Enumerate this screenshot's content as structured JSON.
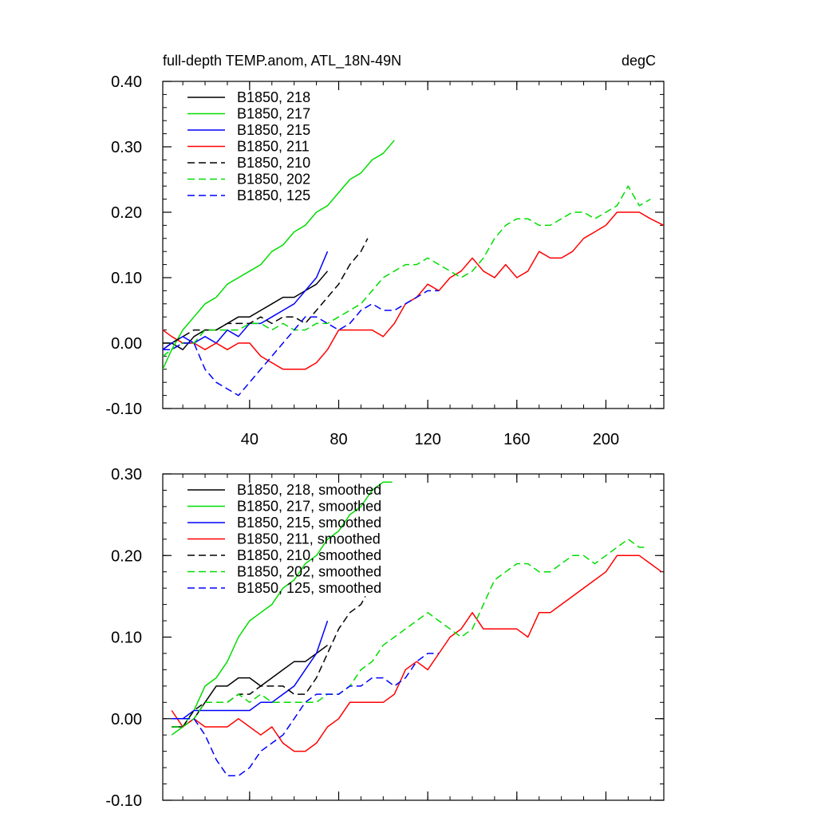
{
  "chart_data": [
    {
      "type": "line",
      "title": "full-depth TEMP.anom, ATL_18N-49N",
      "units_label": "degC",
      "xlim": [
        1,
        226
      ],
      "ylim": [
        -0.1,
        0.4
      ],
      "x_ticks": [
        40,
        80,
        120,
        160,
        200
      ],
      "x_tick_labels": [
        "40",
        "80",
        "120",
        "160",
        "200"
      ],
      "y_ticks": [
        -0.1,
        0.0,
        0.1,
        0.2,
        0.3,
        0.4
      ],
      "y_tick_labels": [
        "-0.10",
        "0.00",
        "0.10",
        "0.20",
        "0.30",
        "0.40"
      ],
      "legend_position": "top-left",
      "series": [
        {
          "name": "B1850, 218",
          "color": "#000000",
          "dash": "solid",
          "x": [
            1,
            5,
            10,
            15,
            20,
            25,
            30,
            35,
            40,
            45,
            50,
            55,
            60,
            65,
            70,
            75
          ],
          "y": [
            -0.01,
            0.0,
            -0.01,
            0.01,
            0.02,
            0.02,
            0.03,
            0.04,
            0.04,
            0.05,
            0.06,
            0.07,
            0.07,
            0.08,
            0.09,
            0.11
          ]
        },
        {
          "name": "B1850, 217",
          "color": "#00dd00",
          "dash": "solid",
          "x": [
            1,
            5,
            10,
            15,
            20,
            25,
            30,
            35,
            40,
            45,
            50,
            55,
            60,
            65,
            70,
            75,
            80,
            85,
            90,
            95,
            100,
            105
          ],
          "y": [
            -0.04,
            -0.01,
            0.02,
            0.04,
            0.06,
            0.07,
            0.09,
            0.1,
            0.11,
            0.12,
            0.14,
            0.15,
            0.17,
            0.18,
            0.2,
            0.21,
            0.23,
            0.25,
            0.26,
            0.28,
            0.29,
            0.31
          ]
        },
        {
          "name": "B1850, 215",
          "color": "#0000ff",
          "dash": "solid",
          "x": [
            1,
            5,
            10,
            15,
            20,
            25,
            30,
            35,
            40,
            45,
            50,
            55,
            60,
            65,
            70,
            75
          ],
          "y": [
            -0.01,
            0.0,
            0.01,
            0.0,
            0.01,
            0.0,
            0.02,
            0.01,
            0.03,
            0.03,
            0.04,
            0.05,
            0.06,
            0.08,
            0.1,
            0.14
          ]
        },
        {
          "name": "B1850, 211",
          "color": "#ff0000",
          "dash": "solid",
          "x": [
            1,
            5,
            10,
            15,
            20,
            25,
            30,
            35,
            40,
            45,
            50,
            55,
            60,
            65,
            70,
            75,
            80,
            85,
            90,
            95,
            100,
            105,
            110,
            115,
            120,
            125,
            130,
            135,
            140,
            145,
            150,
            155,
            160,
            165,
            170,
            175,
            180,
            185,
            190,
            195,
            200,
            205,
            210,
            215,
            220,
            226
          ],
          "y": [
            0.02,
            0.01,
            0.0,
            0.0,
            -0.01,
            -0.0,
            -0.01,
            0.0,
            0.0,
            -0.02,
            -0.03,
            -0.04,
            -0.04,
            -0.04,
            -0.03,
            -0.01,
            0.02,
            0.02,
            0.02,
            0.02,
            0.01,
            0.03,
            0.06,
            0.07,
            0.09,
            0.08,
            0.1,
            0.11,
            0.13,
            0.11,
            0.1,
            0.12,
            0.1,
            0.11,
            0.14,
            0.13,
            0.13,
            0.14,
            0.16,
            0.17,
            0.18,
            0.2,
            0.2,
            0.2,
            0.19,
            0.18
          ]
        },
        {
          "name": "B1850, 210",
          "color": "#000000",
          "dash": "dashed",
          "x": [
            1,
            5,
            10,
            15,
            20,
            25,
            30,
            35,
            40,
            45,
            50,
            55,
            60,
            65,
            70,
            75,
            80,
            85,
            90,
            93
          ],
          "y": [
            0.0,
            0.0,
            0.01,
            0.02,
            0.02,
            0.02,
            0.03,
            0.03,
            0.03,
            0.04,
            0.03,
            0.04,
            0.04,
            0.03,
            0.05,
            0.07,
            0.09,
            0.12,
            0.14,
            0.16
          ]
        },
        {
          "name": "B1850, 202",
          "color": "#00dd00",
          "dash": "dashed",
          "x": [
            1,
            5,
            10,
            15,
            20,
            25,
            30,
            35,
            40,
            45,
            50,
            55,
            60,
            65,
            70,
            75,
            80,
            85,
            90,
            95,
            100,
            105,
            110,
            115,
            120,
            125,
            130,
            135,
            140,
            145,
            150,
            155,
            160,
            165,
            170,
            175,
            180,
            185,
            190,
            195,
            200,
            205,
            210,
            215,
            220
          ],
          "y": [
            -0.02,
            -0.01,
            0.0,
            0.0,
            0.02,
            0.02,
            0.02,
            0.02,
            0.03,
            0.03,
            0.02,
            0.03,
            0.02,
            0.02,
            0.03,
            0.03,
            0.04,
            0.05,
            0.06,
            0.08,
            0.1,
            0.11,
            0.12,
            0.12,
            0.13,
            0.12,
            0.11,
            0.1,
            0.11,
            0.13,
            0.16,
            0.18,
            0.19,
            0.19,
            0.18,
            0.18,
            0.19,
            0.2,
            0.2,
            0.19,
            0.2,
            0.21,
            0.24,
            0.21,
            0.22
          ]
        },
        {
          "name": "B1850, 125",
          "color": "#0000ff",
          "dash": "dashed",
          "x": [
            1,
            5,
            10,
            15,
            20,
            25,
            30,
            35,
            40,
            45,
            50,
            55,
            60,
            65,
            70,
            75,
            80,
            85,
            90,
            95,
            100,
            105,
            110,
            115,
            120,
            125
          ],
          "y": [
            -0.01,
            -0.01,
            0.0,
            0.0,
            -0.04,
            -0.06,
            -0.07,
            -0.08,
            -0.06,
            -0.04,
            -0.02,
            0.0,
            0.02,
            0.04,
            0.04,
            0.03,
            0.02,
            0.03,
            0.05,
            0.06,
            0.05,
            0.05,
            0.06,
            0.07,
            0.08,
            0.08
          ]
        }
      ]
    },
    {
      "type": "line",
      "xlim": [
        1,
        226
      ],
      "ylim": [
        -0.1,
        0.3
      ],
      "x_ticks": [
        40,
        80,
        120,
        160,
        200
      ],
      "x_tick_labels": [],
      "y_ticks": [
        -0.1,
        0.0,
        0.1,
        0.2,
        0.3
      ],
      "y_tick_labels": [
        "-0.10",
        "0.00",
        "0.10",
        "0.20",
        "0.30"
      ],
      "legend_position": "top-left",
      "series": [
        {
          "name": "B1850, 218, smoothed",
          "color": "#000000",
          "dash": "solid",
          "x": [
            5,
            10,
            15,
            20,
            25,
            30,
            35,
            40,
            45,
            50,
            55,
            60,
            65,
            70,
            75
          ],
          "y": [
            -0.01,
            -0.01,
            0.0,
            0.02,
            0.04,
            0.04,
            0.05,
            0.05,
            0.04,
            0.05,
            0.06,
            0.07,
            0.07,
            0.08,
            0.09
          ]
        },
        {
          "name": "B1850, 217, smoothed",
          "color": "#00dd00",
          "dash": "solid",
          "x": [
            5,
            10,
            15,
            20,
            25,
            30,
            35,
            40,
            45,
            50,
            55,
            60,
            65,
            70,
            75,
            80,
            85,
            90,
            95,
            100,
            104
          ],
          "y": [
            -0.02,
            -0.01,
            0.01,
            0.04,
            0.05,
            0.07,
            0.1,
            0.12,
            0.13,
            0.14,
            0.16,
            0.17,
            0.19,
            0.2,
            0.22,
            0.23,
            0.25,
            0.26,
            0.28,
            0.29,
            0.29
          ]
        },
        {
          "name": "B1850, 215, smoothed",
          "color": "#0000ff",
          "dash": "solid",
          "x": [
            5,
            10,
            15,
            20,
            25,
            30,
            35,
            40,
            45,
            50,
            55,
            60,
            65,
            70,
            75
          ],
          "y": [
            0.0,
            0.0,
            0.01,
            0.01,
            0.01,
            0.01,
            0.01,
            0.01,
            0.02,
            0.02,
            0.03,
            0.04,
            0.06,
            0.08,
            0.12
          ]
        },
        {
          "name": "B1850, 211, smoothed",
          "color": "#ff0000",
          "dash": "solid",
          "x": [
            5,
            10,
            15,
            20,
            25,
            30,
            35,
            40,
            45,
            50,
            55,
            60,
            65,
            70,
            75,
            80,
            85,
            90,
            95,
            100,
            105,
            110,
            115,
            120,
            125,
            130,
            135,
            140,
            145,
            150,
            155,
            160,
            165,
            170,
            175,
            180,
            185,
            190,
            195,
            200,
            205,
            210,
            215,
            220,
            225
          ],
          "y": [
            0.01,
            -0.01,
            0.0,
            -0.01,
            -0.01,
            -0.01,
            0.0,
            -0.01,
            -0.02,
            -0.01,
            -0.03,
            -0.04,
            -0.04,
            -0.03,
            -0.01,
            0.0,
            0.02,
            0.02,
            0.02,
            0.02,
            0.03,
            0.06,
            0.07,
            0.06,
            0.08,
            0.1,
            0.11,
            0.13,
            0.11,
            0.11,
            0.11,
            0.11,
            0.1,
            0.13,
            0.13,
            0.14,
            0.15,
            0.16,
            0.17,
            0.18,
            0.2,
            0.2,
            0.2,
            0.19,
            0.18
          ]
        },
        {
          "name": "B1850, 210, smoothed",
          "color": "#000000",
          "dash": "dashed",
          "x": [
            5,
            10,
            15,
            20,
            25,
            30,
            35,
            40,
            45,
            50,
            55,
            60,
            65,
            70,
            75,
            80,
            85,
            90,
            92
          ],
          "y": [
            -0.01,
            -0.01,
            0.01,
            0.02,
            0.02,
            0.02,
            0.03,
            0.03,
            0.04,
            0.04,
            0.04,
            0.03,
            0.03,
            0.05,
            0.08,
            0.11,
            0.13,
            0.14,
            0.15
          ]
        },
        {
          "name": "B1850, 202, smoothed",
          "color": "#00dd00",
          "dash": "dashed",
          "x": [
            5,
            10,
            15,
            20,
            25,
            30,
            35,
            40,
            45,
            50,
            55,
            60,
            65,
            70,
            75,
            80,
            85,
            90,
            95,
            100,
            105,
            110,
            115,
            120,
            125,
            130,
            135,
            140,
            145,
            150,
            155,
            160,
            165,
            170,
            175,
            180,
            185,
            190,
            195,
            200,
            205,
            210,
            215,
            218
          ],
          "y": [
            -0.01,
            -0.01,
            0.0,
            0.02,
            0.02,
            0.02,
            0.03,
            0.02,
            0.03,
            0.02,
            0.02,
            0.02,
            0.02,
            0.02,
            0.03,
            0.03,
            0.04,
            0.06,
            0.07,
            0.09,
            0.1,
            0.11,
            0.12,
            0.13,
            0.12,
            0.11,
            0.1,
            0.11,
            0.14,
            0.17,
            0.18,
            0.19,
            0.19,
            0.18,
            0.18,
            0.19,
            0.2,
            0.2,
            0.19,
            0.2,
            0.21,
            0.22,
            0.21,
            0.21
          ]
        },
        {
          "name": "B1850, 125, smoothed",
          "color": "#0000ff",
          "dash": "dashed",
          "x": [
            5,
            10,
            15,
            20,
            25,
            30,
            35,
            40,
            45,
            50,
            55,
            60,
            65,
            70,
            75,
            80,
            85,
            90,
            95,
            100,
            105,
            110,
            115,
            120,
            125
          ],
          "y": [
            0.0,
            0.0,
            0.0,
            -0.02,
            -0.05,
            -0.07,
            -0.07,
            -0.06,
            -0.04,
            -0.03,
            -0.02,
            0.0,
            0.02,
            0.03,
            0.03,
            0.03,
            0.04,
            0.04,
            0.05,
            0.05,
            0.04,
            0.05,
            0.07,
            0.08,
            0.08
          ]
        }
      ]
    }
  ]
}
